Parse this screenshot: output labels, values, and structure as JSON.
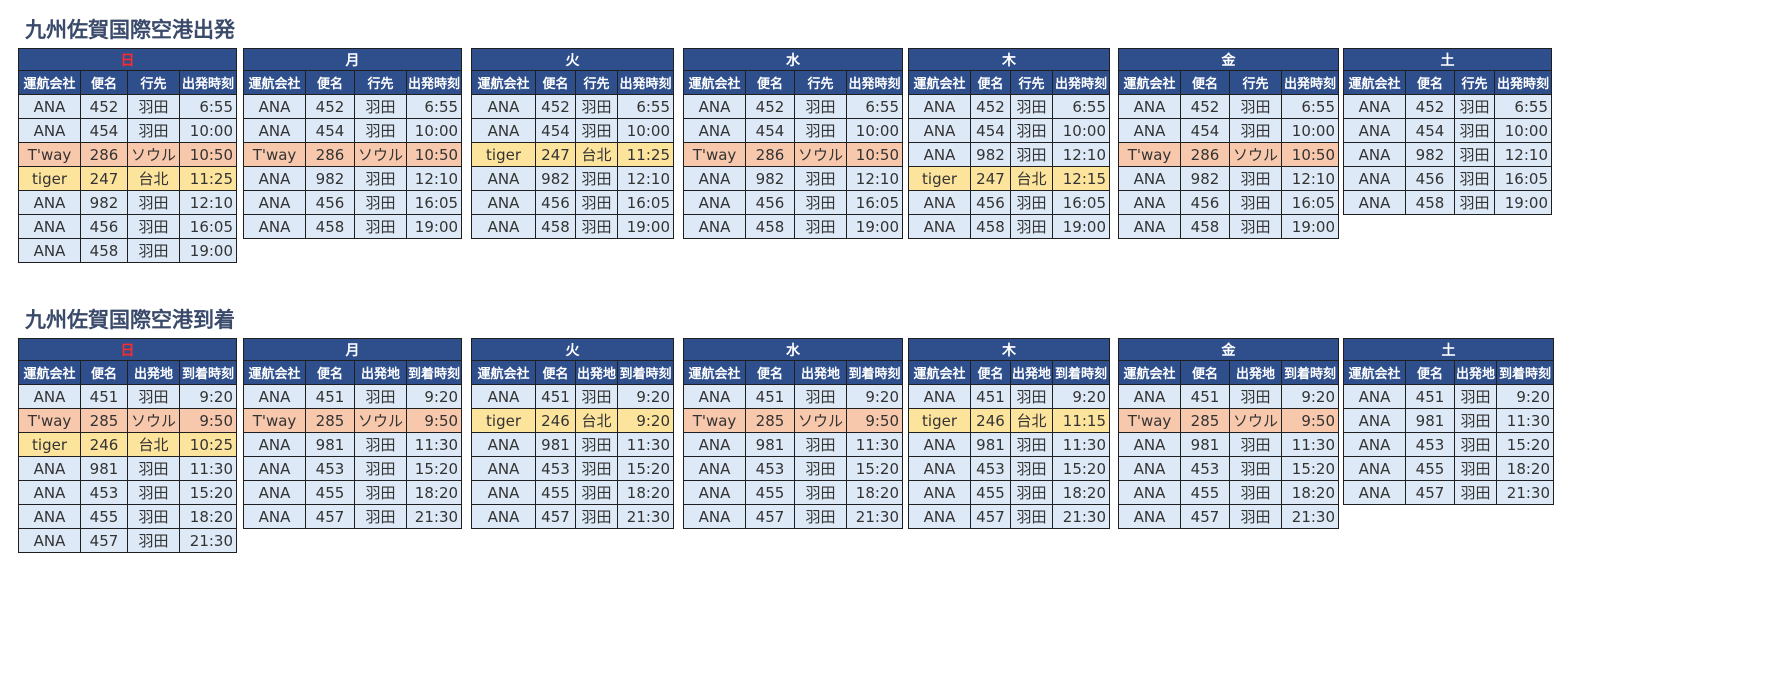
{
  "sections": [
    {
      "title": "九州佐賀国際空港出発",
      "headers": [
        "運航会社",
        "便名",
        "行先",
        "出発時刻"
      ],
      "days": [
        {
          "day": "日",
          "sunday": true,
          "rows": [
            [
              "ANA",
              "452",
              "羽田",
              "6:55"
            ],
            [
              "ANA",
              "454",
              "羽田",
              "10:00"
            ],
            [
              "T'way",
              "286",
              "ソウル",
              "10:50"
            ],
            [
              "tiger",
              "247",
              "台北",
              "11:25"
            ],
            [
              "ANA",
              "982",
              "羽田",
              "12:10"
            ],
            [
              "ANA",
              "456",
              "羽田",
              "16:05"
            ],
            [
              "ANA",
              "458",
              "羽田",
              "19:00"
            ]
          ]
        },
        {
          "day": "月",
          "rows": [
            [
              "ANA",
              "452",
              "羽田",
              "6:55"
            ],
            [
              "ANA",
              "454",
              "羽田",
              "10:00"
            ],
            [
              "T'way",
              "286",
              "ソウル",
              "10:50"
            ],
            [
              "ANA",
              "982",
              "羽田",
              "12:10"
            ],
            [
              "ANA",
              "456",
              "羽田",
              "16:05"
            ],
            [
              "ANA",
              "458",
              "羽田",
              "19:00"
            ]
          ]
        },
        {
          "day": "火",
          "rows": [
            [
              "ANA",
              "452",
              "羽田",
              "6:55"
            ],
            [
              "ANA",
              "454",
              "羽田",
              "10:00"
            ],
            [
              "tiger",
              "247",
              "台北",
              "11:25"
            ],
            [
              "ANA",
              "982",
              "羽田",
              "12:10"
            ],
            [
              "ANA",
              "456",
              "羽田",
              "16:05"
            ],
            [
              "ANA",
              "458",
              "羽田",
              "19:00"
            ]
          ]
        },
        {
          "day": "水",
          "rows": [
            [
              "ANA",
              "452",
              "羽田",
              "6:55"
            ],
            [
              "ANA",
              "454",
              "羽田",
              "10:00"
            ],
            [
              "T'way",
              "286",
              "ソウル",
              "10:50"
            ],
            [
              "ANA",
              "982",
              "羽田",
              "12:10"
            ],
            [
              "ANA",
              "456",
              "羽田",
              "16:05"
            ],
            [
              "ANA",
              "458",
              "羽田",
              "19:00"
            ]
          ]
        },
        {
          "day": "木",
          "rows": [
            [
              "ANA",
              "452",
              "羽田",
              "6:55"
            ],
            [
              "ANA",
              "454",
              "羽田",
              "10:00"
            ],
            [
              "ANA",
              "982",
              "羽田",
              "12:10"
            ],
            [
              "tiger",
              "247",
              "台北",
              "12:15"
            ],
            [
              "ANA",
              "456",
              "羽田",
              "16:05"
            ],
            [
              "ANA",
              "458",
              "羽田",
              "19:00"
            ]
          ]
        },
        {
          "day": "金",
          "rows": [
            [
              "ANA",
              "452",
              "羽田",
              "6:55"
            ],
            [
              "ANA",
              "454",
              "羽田",
              "10:00"
            ],
            [
              "T'way",
              "286",
              "ソウル",
              "10:50"
            ],
            [
              "ANA",
              "982",
              "羽田",
              "12:10"
            ],
            [
              "ANA",
              "456",
              "羽田",
              "16:05"
            ],
            [
              "ANA",
              "458",
              "羽田",
              "19:00"
            ]
          ]
        },
        {
          "day": "土",
          "rows": [
            [
              "ANA",
              "452",
              "羽田",
              "6:55"
            ],
            [
              "ANA",
              "454",
              "羽田",
              "10:00"
            ],
            [
              "ANA",
              "982",
              "羽田",
              "12:10"
            ],
            [
              "ANA",
              "456",
              "羽田",
              "16:05"
            ],
            [
              "ANA",
              "458",
              "羽田",
              "19:00"
            ]
          ]
        }
      ]
    },
    {
      "title": "九州佐賀国際空港到着",
      "headers": [
        "運航会社",
        "便名",
        "出発地",
        "到着時刻"
      ],
      "days": [
        {
          "day": "日",
          "sunday": true,
          "rows": [
            [
              "ANA",
              "451",
              "羽田",
              "9:20"
            ],
            [
              "T'way",
              "285",
              "ソウル",
              "9:50"
            ],
            [
              "tiger",
              "246",
              "台北",
              "10:25"
            ],
            [
              "ANA",
              "981",
              "羽田",
              "11:30"
            ],
            [
              "ANA",
              "453",
              "羽田",
              "15:20"
            ],
            [
              "ANA",
              "455",
              "羽田",
              "18:20"
            ],
            [
              "ANA",
              "457",
              "羽田",
              "21:30"
            ]
          ]
        },
        {
          "day": "月",
          "rows": [
            [
              "ANA",
              "451",
              "羽田",
              "9:20"
            ],
            [
              "T'way",
              "285",
              "ソウル",
              "9:50"
            ],
            [
              "ANA",
              "981",
              "羽田",
              "11:30"
            ],
            [
              "ANA",
              "453",
              "羽田",
              "15:20"
            ],
            [
              "ANA",
              "455",
              "羽田",
              "18:20"
            ],
            [
              "ANA",
              "457",
              "羽田",
              "21:30"
            ]
          ]
        },
        {
          "day": "火",
          "rows": [
            [
              "ANA",
              "451",
              "羽田",
              "9:20"
            ],
            [
              "tiger",
              "246",
              "台北",
              "9:20"
            ],
            [
              "ANA",
              "981",
              "羽田",
              "11:30"
            ],
            [
              "ANA",
              "453",
              "羽田",
              "15:20"
            ],
            [
              "ANA",
              "455",
              "羽田",
              "18:20"
            ],
            [
              "ANA",
              "457",
              "羽田",
              "21:30"
            ]
          ]
        },
        {
          "day": "水",
          "rows": [
            [
              "ANA",
              "451",
              "羽田",
              "9:20"
            ],
            [
              "T'way",
              "285",
              "ソウル",
              "9:50"
            ],
            [
              "ANA",
              "981",
              "羽田",
              "11:30"
            ],
            [
              "ANA",
              "453",
              "羽田",
              "15:20"
            ],
            [
              "ANA",
              "455",
              "羽田",
              "18:20"
            ],
            [
              "ANA",
              "457",
              "羽田",
              "21:30"
            ]
          ]
        },
        {
          "day": "木",
          "rows": [
            [
              "ANA",
              "451",
              "羽田",
              "9:20"
            ],
            [
              "tiger",
              "246",
              "台北",
              "11:15"
            ],
            [
              "ANA",
              "981",
              "羽田",
              "11:30"
            ],
            [
              "ANA",
              "453",
              "羽田",
              "15:20"
            ],
            [
              "ANA",
              "455",
              "羽田",
              "18:20"
            ],
            [
              "ANA",
              "457",
              "羽田",
              "21:30"
            ]
          ]
        },
        {
          "day": "金",
          "rows": [
            [
              "ANA",
              "451",
              "羽田",
              "9:20"
            ],
            [
              "T'way",
              "285",
              "ソウル",
              "9:50"
            ],
            [
              "ANA",
              "981",
              "羽田",
              "11:30"
            ],
            [
              "ANA",
              "453",
              "羽田",
              "15:20"
            ],
            [
              "ANA",
              "455",
              "羽田",
              "18:20"
            ],
            [
              "ANA",
              "457",
              "羽田",
              "21:30"
            ]
          ]
        },
        {
          "day": "土",
          "rows": [
            [
              "ANA",
              "451",
              "羽田",
              "9:20"
            ],
            [
              "ANA",
              "981",
              "羽田",
              "11:30"
            ],
            [
              "ANA",
              "453",
              "羽田",
              "15:20"
            ],
            [
              "ANA",
              "455",
              "羽田",
              "18:20"
            ],
            [
              "ANA",
              "457",
              "羽田",
              "21:30"
            ]
          ]
        }
      ]
    }
  ],
  "colors": {
    "header_bg": "#2e4f8c",
    "row_bg": "#dde9f6",
    "tway_bg": "#f8c8ad",
    "tiger_bg": "#fde49d",
    "sunday_text": "#ff2a2a"
  }
}
